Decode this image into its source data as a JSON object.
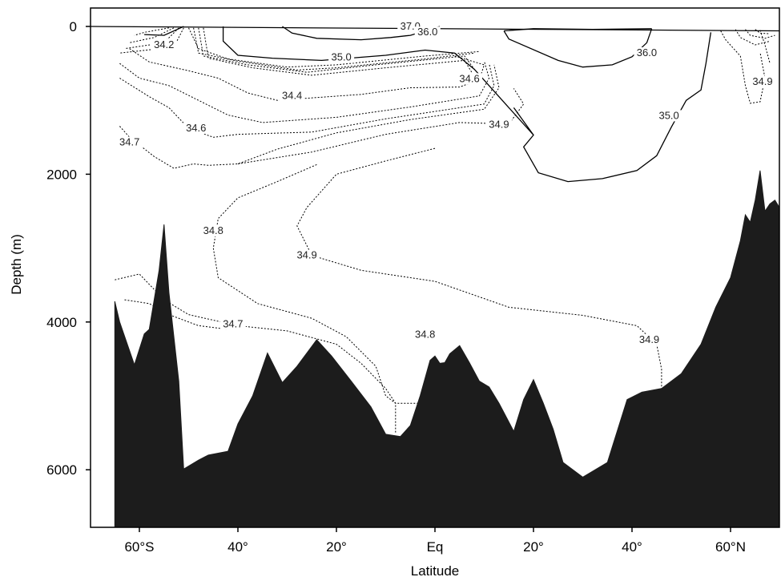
{
  "chart_data": {
    "type": "contour",
    "xlabel": "Latitude",
    "ylabel": "Depth (m)",
    "xlim": [
      -70,
      70
    ],
    "ylim": [
      6800,
      0
    ],
    "x_ticks": [
      {
        "value": -60,
        "label": "60°S"
      },
      {
        "value": -40,
        "label": "40°"
      },
      {
        "value": -20,
        "label": "20°"
      },
      {
        "value": 0,
        "label": "Eq"
      },
      {
        "value": 20,
        "label": "20°"
      },
      {
        "value": 40,
        "label": "40°"
      },
      {
        "value": 60,
        "label": "60°N"
      }
    ],
    "y_ticks": [
      {
        "value": 0,
        "label": "0"
      },
      {
        "value": 2000,
        "label": "2000"
      },
      {
        "value": 4000,
        "label": "4000"
      },
      {
        "value": 6000,
        "label": "6000"
      }
    ],
    "contour_labels": [
      {
        "text": "37.0",
        "lat": -5,
        "depth": 20
      },
      {
        "text": "36.0",
        "lat": -1.5,
        "depth": 100
      },
      {
        "text": "34.2",
        "lat": -55,
        "depth": 270
      },
      {
        "text": "35.0",
        "lat": -19,
        "depth": 440
      },
      {
        "text": "36.0",
        "lat": 43,
        "depth": 380
      },
      {
        "text": "34.6",
        "lat": 7,
        "depth": 730
      },
      {
        "text": "34.9",
        "lat": 66.5,
        "depth": 770
      },
      {
        "text": "34.4",
        "lat": -29,
        "depth": 960
      },
      {
        "text": "35.0",
        "lat": 47.5,
        "depth": 1230
      },
      {
        "text": "34.9",
        "lat": 13,
        "depth": 1350
      },
      {
        "text": "34.6",
        "lat": -48.5,
        "depth": 1400
      },
      {
        "text": "34.7",
        "lat": -62,
        "depth": 1590
      },
      {
        "text": "34.8",
        "lat": -45,
        "depth": 2790
      },
      {
        "text": "34.9",
        "lat": -26,
        "depth": 3120
      },
      {
        "text": "34.7",
        "lat": -41,
        "depth": 4050
      },
      {
        "text": "34.8",
        "lat": -2,
        "depth": 4190
      },
      {
        "text": "34.9",
        "lat": 43.5,
        "depth": 4260
      }
    ],
    "series": [
      {
        "style": "solid",
        "points": [
          [
            -70,
            0
          ],
          [
            70,
            60
          ]
        ]
      },
      {
        "style": "solid",
        "points": [
          [
            -59,
            110
          ],
          [
            -55,
            120
          ],
          [
            -52,
            30
          ],
          [
            -51,
            0
          ]
        ]
      },
      {
        "style": "solid",
        "points": [
          [
            -31,
            0
          ],
          [
            -29,
            90
          ],
          [
            -24,
            160
          ],
          [
            -15,
            180
          ],
          [
            -9,
            150
          ],
          [
            -5,
            120
          ],
          [
            1,
            0
          ]
        ]
      },
      {
        "style": "solid",
        "points": [
          [
            -43,
            0
          ],
          [
            -43,
            200
          ],
          [
            -40,
            390
          ],
          [
            -33,
            430
          ],
          [
            -23,
            460
          ],
          [
            -10,
            390
          ],
          [
            -2,
            320
          ],
          [
            4,
            360
          ],
          [
            8,
            580
          ],
          [
            15,
            1100
          ],
          [
            20,
            1470
          ]
        ]
      },
      {
        "style": "solid",
        "points": [
          [
            14,
            60
          ],
          [
            20,
            30
          ],
          [
            32,
            40
          ],
          [
            44,
            30
          ]
        ]
      },
      {
        "style": "solid",
        "points": [
          [
            14,
            60
          ],
          [
            15,
            170
          ],
          [
            25,
            460
          ],
          [
            30,
            550
          ],
          [
            36,
            520
          ],
          [
            40,
            410
          ],
          [
            43,
            220
          ],
          [
            44,
            30
          ]
        ]
      },
      {
        "style": "solid",
        "points": [
          [
            16,
            1100
          ],
          [
            20,
            1470
          ],
          [
            18,
            1630
          ],
          [
            21,
            1980
          ],
          [
            27,
            2100
          ],
          [
            34,
            2060
          ],
          [
            41,
            1950
          ],
          [
            45,
            1750
          ],
          [
            48,
            1360
          ],
          [
            51,
            1000
          ],
          [
            54,
            860
          ],
          [
            55,
            500
          ],
          [
            56,
            80
          ]
        ]
      },
      {
        "style": "dotted",
        "points": [
          [
            -54,
            20
          ],
          [
            -59,
            80
          ],
          [
            -61,
            120
          ]
        ]
      },
      {
        "style": "dotted",
        "points": [
          [
            -53,
            20
          ],
          [
            -57,
            150
          ],
          [
            -62,
            220
          ]
        ]
      },
      {
        "style": "dotted",
        "points": [
          [
            -52,
            20
          ],
          [
            -55,
            220
          ],
          [
            -63,
            300
          ]
        ]
      },
      {
        "style": "dotted",
        "points": [
          [
            -51,
            20
          ],
          [
            -53,
            280
          ],
          [
            -64,
            360
          ]
        ]
      },
      {
        "style": "dotted",
        "points": [
          [
            -50,
            20
          ],
          [
            -48,
            300
          ],
          [
            -42,
            440
          ],
          [
            -30,
            550
          ],
          [
            -20,
            520
          ],
          [
            -2,
            400
          ],
          [
            9,
            340
          ]
        ]
      },
      {
        "style": "dotted",
        "points": [
          [
            -49,
            20
          ],
          [
            -48,
            360
          ],
          [
            -40,
            470
          ],
          [
            -28,
            590
          ],
          [
            -20,
            560
          ],
          [
            -2,
            440
          ],
          [
            8,
            360
          ]
        ]
      },
      {
        "style": "dotted",
        "points": [
          [
            -48,
            20
          ],
          [
            -47,
            400
          ],
          [
            -38,
            520
          ],
          [
            -26,
            620
          ],
          [
            -12,
            520
          ],
          [
            6,
            400
          ],
          [
            8,
            580
          ]
        ]
      },
      {
        "style": "dotted",
        "points": [
          [
            -47,
            20
          ],
          [
            -46,
            430
          ],
          [
            -37,
            560
          ],
          [
            -25,
            660
          ],
          [
            -10,
            560
          ],
          [
            6,
            460
          ],
          [
            8,
            680
          ]
        ]
      },
      {
        "style": "dotted",
        "points": [
          [
            -62,
            300
          ],
          [
            -58,
            480
          ],
          [
            -50,
            600
          ],
          [
            -44,
            700
          ],
          [
            -38,
            900
          ],
          [
            -32,
            1000
          ],
          [
            -15,
            920
          ],
          [
            -5,
            830
          ],
          [
            5,
            820
          ],
          [
            9,
            720
          ],
          [
            10,
            520
          ],
          [
            4,
            400
          ]
        ]
      },
      {
        "style": "dotted",
        "points": [
          [
            -64,
            500
          ],
          [
            -60,
            700
          ],
          [
            -54,
            800
          ],
          [
            -48,
            1000
          ],
          [
            -42,
            1200
          ],
          [
            -35,
            1300
          ],
          [
            -20,
            1230
          ],
          [
            -5,
            1090
          ],
          [
            9,
            940
          ],
          [
            11,
            700
          ],
          [
            10,
            470
          ]
        ]
      },
      {
        "style": "dotted",
        "points": [
          [
            -64,
            700
          ],
          [
            -58,
            950
          ],
          [
            -54,
            1100
          ],
          [
            -50,
            1380
          ],
          [
            -45,
            1500
          ],
          [
            -40,
            1460
          ],
          [
            -25,
            1430
          ],
          [
            -10,
            1250
          ],
          [
            10,
            1050
          ],
          [
            12,
            800
          ],
          [
            11,
            500
          ]
        ]
      },
      {
        "style": "dotted",
        "points": [
          [
            -64,
            1350
          ],
          [
            -62,
            1500
          ],
          [
            -57,
            1760
          ],
          [
            -53,
            1920
          ],
          [
            -49,
            1860
          ],
          [
            -46,
            1880
          ],
          [
            -40,
            1860
          ],
          [
            -32,
            1660
          ],
          [
            -20,
            1440
          ],
          [
            -5,
            1260
          ],
          [
            10,
            1120
          ],
          [
            13,
            830
          ],
          [
            12,
            520
          ]
        ]
      },
      {
        "style": "dotted",
        "points": [
          [
            -40,
            1860
          ],
          [
            -25,
            1700
          ],
          [
            -10,
            1460
          ],
          [
            5,
            1300
          ],
          [
            15,
            1320
          ],
          [
            18,
            1050
          ],
          [
            16,
            840
          ]
        ]
      },
      {
        "style": "dotted",
        "points": [
          [
            -24,
            1870
          ],
          [
            -32,
            2100
          ],
          [
            -40,
            2320
          ],
          [
            -44,
            2600
          ],
          [
            -45,
            3000
          ],
          [
            -44,
            3400
          ],
          [
            -36,
            3750
          ],
          [
            -25,
            3950
          ],
          [
            -18,
            4200
          ],
          [
            -12,
            4600
          ],
          [
            -10,
            5000
          ],
          [
            -8,
            5100
          ],
          [
            -3,
            5100
          ],
          [
            -2,
            5200
          ]
        ]
      },
      {
        "style": "dotted",
        "points": [
          [
            0,
            1650
          ],
          [
            -10,
            1820
          ],
          [
            -20,
            2000
          ],
          [
            -26,
            2450
          ],
          [
            -28,
            2700
          ],
          [
            -25,
            3100
          ],
          [
            -15,
            3300
          ],
          [
            0,
            3450
          ],
          [
            15,
            3800
          ],
          [
            30,
            3910
          ],
          [
            41,
            4050
          ],
          [
            45,
            4300
          ],
          [
            46,
            4640
          ],
          [
            46,
            4950
          ]
        ]
      },
      {
        "style": "dotted",
        "points": [
          [
            -65,
            3430
          ],
          [
            -60,
            3350
          ],
          [
            -55,
            3700
          ],
          [
            -50,
            3900
          ],
          [
            -40,
            4050
          ],
          [
            -30,
            4120
          ],
          [
            -20,
            4300
          ],
          [
            -15,
            4560
          ],
          [
            -10,
            4900
          ],
          [
            -8,
            5100
          ],
          [
            -8,
            5500
          ]
        ]
      },
      {
        "style": "dotted",
        "points": [
          [
            -63,
            3700
          ],
          [
            -58,
            3750
          ],
          [
            -54,
            3900
          ],
          [
            -48,
            4050
          ],
          [
            -42,
            4100
          ]
        ]
      },
      {
        "style": "dotted",
        "points": [
          [
            58,
            60
          ],
          [
            59,
            180
          ],
          [
            62,
            400
          ],
          [
            63,
            800
          ],
          [
            64,
            1040
          ],
          [
            66,
            1020
          ],
          [
            67,
            700
          ],
          [
            66,
            350
          ]
        ]
      },
      {
        "style": "dotted",
        "points": [
          [
            61,
            40
          ],
          [
            62,
            150
          ],
          [
            65,
            250
          ],
          [
            68,
            200
          ]
        ]
      },
      {
        "style": "dotted",
        "points": [
          [
            63,
            40
          ],
          [
            64,
            120
          ],
          [
            67,
            160
          ],
          [
            69,
            120
          ]
        ]
      },
      {
        "style": "dotted",
        "points": [
          [
            65,
            40
          ],
          [
            66,
            90
          ],
          [
            68,
            100
          ]
        ]
      },
      {
        "style": "dotted",
        "points": [
          [
            66,
            50
          ],
          [
            67,
            250
          ],
          [
            68,
            500
          ]
        ]
      }
    ],
    "bathymetry": [
      [
        -65,
        6800
      ],
      [
        -65,
        3720
      ],
      [
        -64,
        4000
      ],
      [
        -61,
        4580
      ],
      [
        -59,
        4160
      ],
      [
        -58,
        4100
      ],
      [
        -56,
        3300
      ],
      [
        -55,
        2680
      ],
      [
        -54,
        3600
      ],
      [
        -52,
        4800
      ],
      [
        -51,
        5990
      ],
      [
        -48,
        5870
      ],
      [
        -46,
        5800
      ],
      [
        -42,
        5750
      ],
      [
        -40,
        5380
      ],
      [
        -37,
        5000
      ],
      [
        -34,
        4420
      ],
      [
        -31,
        4820
      ],
      [
        -28,
        4600
      ],
      [
        -24,
        4240
      ],
      [
        -21,
        4460
      ],
      [
        -17,
        4800
      ],
      [
        -13,
        5150
      ],
      [
        -10,
        5520
      ],
      [
        -7,
        5550
      ],
      [
        -5,
        5400
      ],
      [
        -3,
        5000
      ],
      [
        -1,
        4520
      ],
      [
        0,
        4460
      ],
      [
        1,
        4560
      ],
      [
        2,
        4550
      ],
      [
        3,
        4430
      ],
      [
        5,
        4320
      ],
      [
        7,
        4550
      ],
      [
        9,
        4800
      ],
      [
        11,
        4880
      ],
      [
        13,
        5100
      ],
      [
        16,
        5480
      ],
      [
        18,
        5050
      ],
      [
        20,
        4780
      ],
      [
        22,
        5100
      ],
      [
        24,
        5450
      ],
      [
        26,
        5900
      ],
      [
        30,
        6100
      ],
      [
        35,
        5900
      ],
      [
        39,
        5050
      ],
      [
        42,
        4950
      ],
      [
        46,
        4900
      ],
      [
        50,
        4700
      ],
      [
        54,
        4300
      ],
      [
        57,
        3800
      ],
      [
        60,
        3400
      ],
      [
        62,
        2900
      ],
      [
        63,
        2550
      ],
      [
        64,
        2650
      ],
      [
        65,
        2350
      ],
      [
        66,
        1950
      ],
      [
        67,
        2500
      ],
      [
        68,
        2400
      ],
      [
        69,
        2350
      ],
      [
        70,
        2450
      ],
      [
        70,
        6800
      ]
    ]
  }
}
